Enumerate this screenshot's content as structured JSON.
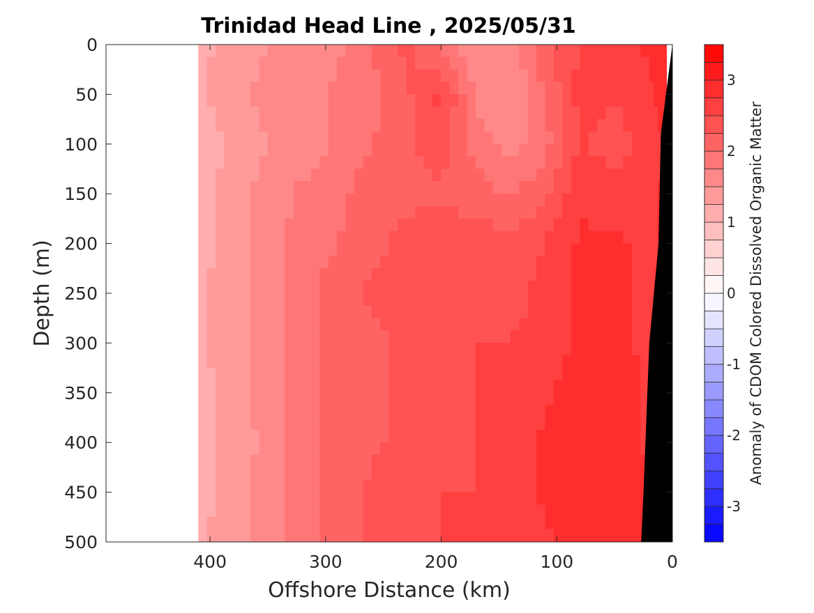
{
  "chart_data": {
    "type": "heatmap",
    "subtype": "filled-contour section",
    "title": "Trinidad Head Line , 2025/05/31",
    "xlabel": "Offshore Distance (km)",
    "ylabel": "Depth (m)",
    "xlim": [
      490,
      0
    ],
    "x_reversed": true,
    "ylim": [
      0,
      500
    ],
    "y_reversed": true,
    "x_ticks": [
      "400",
      "300",
      "200",
      "100",
      "0"
    ],
    "x_tick_values": [
      400,
      300,
      200,
      100,
      0
    ],
    "y_ticks": [
      "0",
      "50",
      "100",
      "150",
      "200",
      "250",
      "300",
      "350",
      "400",
      "450",
      "500"
    ],
    "y_tick_values": [
      0,
      50,
      100,
      150,
      200,
      250,
      300,
      350,
      400,
      450,
      500
    ],
    "data_extent_km": [
      410,
      0
    ],
    "colorbar": {
      "label": "Anomaly of CDOM Colored Dissolved Organic Matter",
      "range": [
        -3.5,
        3.5
      ],
      "levels": 28,
      "colormap": "blue-white-red diverging",
      "ticks": [
        "-3",
        "-2",
        "-1",
        "0",
        "1",
        "2",
        "3"
      ],
      "tick_values": [
        -3,
        -2,
        -1,
        0,
        1,
        2,
        3
      ],
      "colors": {
        "negative": "#0000ff",
        "zero": "#ffffff",
        "positive": "#ff0000"
      }
    },
    "bathymetry": {
      "color": "#000000",
      "profile": [
        [
          0,
          0
        ],
        [
          10,
          90
        ],
        [
          12,
          200
        ],
        [
          20,
          300
        ],
        [
          25,
          450
        ],
        [
          27,
          500
        ]
      ]
    },
    "distance_km": [
      410,
      380,
      350,
      320,
      290,
      260,
      230,
      200,
      170,
      140,
      110,
      80,
      50,
      20,
      5
    ],
    "depth_m": [
      0,
      50,
      100,
      150,
      200,
      250,
      300,
      350,
      400,
      450,
      500
    ],
    "anomaly": [
      [
        1.2,
        1.3,
        1.5,
        1.6,
        1.7,
        2.0,
        2.3,
        1.9,
        1.5,
        1.6,
        2.2,
        2.5,
        2.6,
        2.8,
        3.0
      ],
      [
        1.2,
        1.4,
        1.6,
        1.6,
        1.8,
        1.9,
        2.2,
        2.6,
        1.7,
        1.5,
        2.0,
        2.6,
        2.5,
        2.7,
        2.9
      ],
      [
        1.1,
        1.3,
        1.5,
        1.6,
        1.8,
        2.0,
        2.2,
        2.4,
        1.9,
        1.6,
        1.9,
        2.5,
        2.4,
        2.6,
        2.8
      ],
      [
        1.1,
        1.4,
        1.6,
        1.8,
        1.9,
        2.2,
        2.2,
        2.2,
        2.1,
        2.0,
        2.2,
        2.7,
        2.6,
        2.7,
        2.8
      ],
      [
        1.1,
        1.4,
        1.6,
        1.9,
        2.0,
        2.2,
        2.3,
        2.4,
        2.4,
        2.3,
        2.5,
        2.8,
        2.8,
        2.7,
        2.8
      ],
      [
        1.2,
        1.4,
        1.6,
        1.9,
        2.1,
        2.3,
        2.3,
        2.4,
        2.4,
        2.4,
        2.6,
        2.8,
        2.8,
        2.7,
        2.7
      ],
      [
        1.2,
        1.4,
        1.6,
        1.9,
        2.1,
        2.2,
        2.3,
        2.5,
        2.5,
        2.5,
        2.6,
        2.8,
        2.8,
        2.7,
        2.7
      ],
      [
        1.1,
        1.4,
        1.6,
        1.9,
        2.1,
        2.2,
        2.3,
        2.4,
        2.5,
        2.6,
        2.7,
        2.9,
        2.9,
        2.7,
        2.7
      ],
      [
        1.2,
        1.3,
        1.6,
        1.9,
        2.1,
        2.2,
        2.3,
        2.4,
        2.5,
        2.6,
        2.8,
        3.0,
        2.9,
        2.7,
        2.6
      ],
      [
        1.1,
        1.4,
        1.6,
        1.9,
        2.1,
        2.3,
        2.4,
        2.5,
        2.5,
        2.6,
        2.8,
        2.9,
        2.8,
        2.8,
        2.7
      ],
      [
        1.2,
        1.4,
        1.6,
        1.9,
        2.1,
        2.3,
        2.4,
        2.5,
        2.6,
        2.6,
        2.7,
        2.8,
        2.8,
        2.8,
        2.8
      ]
    ]
  }
}
